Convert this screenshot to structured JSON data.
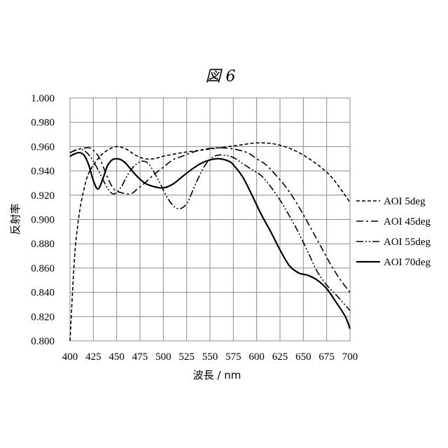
{
  "chart_data": {
    "type": "line",
    "title": "図 6",
    "xlabel": "波長 / nm",
    "ylabel": "反射率",
    "xlim": [
      400,
      700
    ],
    "ylim": [
      0.8,
      1.0
    ],
    "x_ticks": [
      "400",
      "425",
      "450",
      "475",
      "500",
      "525",
      "550",
      "575",
      "600",
      "625",
      "650",
      "675",
      "700"
    ],
    "y_ticks": [
      "0.800",
      "0.820",
      "0.840",
      "0.860",
      "0.880",
      "0.900",
      "0.920",
      "0.940",
      "0.960",
      "0.980",
      "1.000"
    ],
    "grid": true,
    "legend_position": "right",
    "series": [
      {
        "name": "AOI 5deg",
        "dash": "dashed",
        "points": [
          [
            400,
            0.8
          ],
          [
            405,
            0.87
          ],
          [
            410,
            0.905
          ],
          [
            415,
            0.925
          ],
          [
            420,
            0.938
          ],
          [
            430,
            0.95
          ],
          [
            440,
            0.957
          ],
          [
            450,
            0.96
          ],
          [
            460,
            0.958
          ],
          [
            470,
            0.953
          ],
          [
            480,
            0.95
          ],
          [
            490,
            0.95
          ],
          [
            500,
            0.952
          ],
          [
            520,
            0.955
          ],
          [
            540,
            0.957
          ],
          [
            560,
            0.959
          ],
          [
            580,
            0.961
          ],
          [
            600,
            0.963
          ],
          [
            620,
            0.962
          ],
          [
            640,
            0.957
          ],
          [
            660,
            0.948
          ],
          [
            680,
            0.935
          ],
          [
            700,
            0.914
          ]
        ]
      },
      {
        "name": "AOI 45deg",
        "dash": "dash-dot",
        "points": [
          [
            400,
            0.955
          ],
          [
            410,
            0.958
          ],
          [
            420,
            0.959
          ],
          [
            425,
            0.957
          ],
          [
            432,
            0.95
          ],
          [
            440,
            0.935
          ],
          [
            447,
            0.925
          ],
          [
            455,
            0.922
          ],
          [
            465,
            0.921
          ],
          [
            472,
            0.925
          ],
          [
            480,
            0.93
          ],
          [
            490,
            0.937
          ],
          [
            500,
            0.943
          ],
          [
            510,
            0.949
          ],
          [
            520,
            0.952
          ],
          [
            530,
            0.955
          ],
          [
            545,
            0.958
          ],
          [
            560,
            0.959
          ],
          [
            575,
            0.958
          ],
          [
            590,
            0.955
          ],
          [
            600,
            0.95
          ],
          [
            610,
            0.945
          ],
          [
            620,
            0.937
          ],
          [
            630,
            0.928
          ],
          [
            640,
            0.917
          ],
          [
            650,
            0.904
          ],
          [
            660,
            0.89
          ],
          [
            670,
            0.876
          ],
          [
            680,
            0.862
          ],
          [
            690,
            0.85
          ],
          [
            700,
            0.84
          ]
        ]
      },
      {
        "name": "AOI 55deg",
        "dash": "dash-dot-dot",
        "points": [
          [
            400,
            0.955
          ],
          [
            410,
            0.958
          ],
          [
            418,
            0.955
          ],
          [
            425,
            0.948
          ],
          [
            432,
            0.938
          ],
          [
            440,
            0.926
          ],
          [
            447,
            0.921
          ],
          [
            455,
            0.927
          ],
          [
            462,
            0.937
          ],
          [
            470,
            0.945
          ],
          [
            478,
            0.948
          ],
          [
            485,
            0.945
          ],
          [
            495,
            0.932
          ],
          [
            505,
            0.917
          ],
          [
            515,
            0.909
          ],
          [
            525,
            0.913
          ],
          [
            535,
            0.93
          ],
          [
            545,
            0.945
          ],
          [
            555,
            0.952
          ],
          [
            565,
            0.953
          ],
          [
            575,
            0.951
          ],
          [
            585,
            0.946
          ],
          [
            595,
            0.941
          ],
          [
            605,
            0.936
          ],
          [
            615,
            0.927
          ],
          [
            625,
            0.916
          ],
          [
            635,
            0.903
          ],
          [
            645,
            0.889
          ],
          [
            655,
            0.873
          ],
          [
            665,
            0.857
          ],
          [
            675,
            0.846
          ],
          [
            685,
            0.838
          ],
          [
            700,
            0.825
          ]
        ]
      },
      {
        "name": "AOI 70deg",
        "dash": "solid",
        "points": [
          [
            400,
            0.952
          ],
          [
            405,
            0.954
          ],
          [
            410,
            0.955
          ],
          [
            415,
            0.953
          ],
          [
            420,
            0.945
          ],
          [
            425,
            0.932
          ],
          [
            430,
            0.925
          ],
          [
            435,
            0.933
          ],
          [
            440,
            0.944
          ],
          [
            445,
            0.949
          ],
          [
            450,
            0.95
          ],
          [
            455,
            0.949
          ],
          [
            460,
            0.946
          ],
          [
            470,
            0.937
          ],
          [
            480,
            0.93
          ],
          [
            490,
            0.927
          ],
          [
            500,
            0.926
          ],
          [
            510,
            0.929
          ],
          [
            520,
            0.935
          ],
          [
            530,
            0.941
          ],
          [
            540,
            0.946
          ],
          [
            550,
            0.949
          ],
          [
            560,
            0.95
          ],
          [
            570,
            0.948
          ],
          [
            575,
            0.945
          ],
          [
            585,
            0.935
          ],
          [
            595,
            0.92
          ],
          [
            605,
            0.904
          ],
          [
            615,
            0.89
          ],
          [
            625,
            0.875
          ],
          [
            635,
            0.862
          ],
          [
            645,
            0.856
          ],
          [
            655,
            0.854
          ],
          [
            665,
            0.85
          ],
          [
            675,
            0.843
          ],
          [
            685,
            0.832
          ],
          [
            695,
            0.82
          ],
          [
            700,
            0.81
          ]
        ]
      }
    ]
  }
}
